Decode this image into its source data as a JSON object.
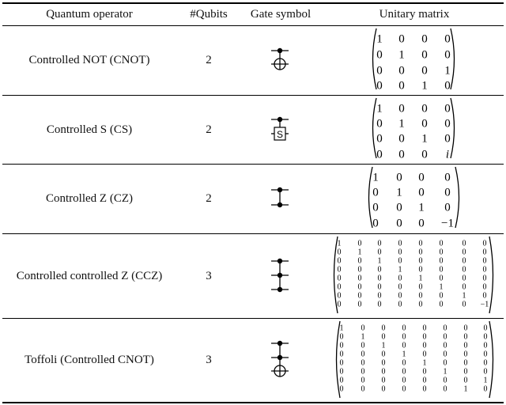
{
  "headers": {
    "operator": "Quantum operator",
    "qubits": "#Qubits",
    "symbol": "Gate symbol",
    "matrix": "Unitary matrix"
  },
  "rows": [
    {
      "operator": "Controlled NOT (CNOT)",
      "qubits": "2",
      "gate": "cnot-gate-icon",
      "matrix": [
        [
          "1",
          "0",
          "0",
          "0"
        ],
        [
          "0",
          "1",
          "0",
          "0"
        ],
        [
          "0",
          "0",
          "0",
          "1"
        ],
        [
          "0",
          "0",
          "1",
          "0"
        ]
      ]
    },
    {
      "operator": "Controlled S (CS)",
      "qubits": "2",
      "gate": "controlled-s-gate-icon",
      "gate_label": "S",
      "matrix": [
        [
          "1",
          "0",
          "0",
          "0"
        ],
        [
          "0",
          "1",
          "0",
          "0"
        ],
        [
          "0",
          "0",
          "1",
          "0"
        ],
        [
          "0",
          "0",
          "0",
          "i"
        ]
      ]
    },
    {
      "operator": "Controlled Z (CZ)",
      "qubits": "2",
      "gate": "cz-gate-icon",
      "matrix": [
        [
          "1",
          "0",
          "0",
          "0"
        ],
        [
          "0",
          "1",
          "0",
          "0"
        ],
        [
          "0",
          "0",
          "1",
          "0"
        ],
        [
          "0",
          "0",
          "0",
          "−1"
        ]
      ]
    },
    {
      "operator": "Controlled controlled Z (CCZ)",
      "qubits": "3",
      "gate": "ccz-gate-icon",
      "matrix": [
        [
          "1",
          "0",
          "0",
          "0",
          "0",
          "0",
          "0",
          "0"
        ],
        [
          "0",
          "1",
          "0",
          "0",
          "0",
          "0",
          "0",
          "0"
        ],
        [
          "0",
          "0",
          "1",
          "0",
          "0",
          "0",
          "0",
          "0"
        ],
        [
          "0",
          "0",
          "0",
          "1",
          "0",
          "0",
          "0",
          "0"
        ],
        [
          "0",
          "0",
          "0",
          "0",
          "1",
          "0",
          "0",
          "0"
        ],
        [
          "0",
          "0",
          "0",
          "0",
          "0",
          "1",
          "0",
          "0"
        ],
        [
          "0",
          "0",
          "0",
          "0",
          "0",
          "0",
          "1",
          "0"
        ],
        [
          "0",
          "0",
          "0",
          "0",
          "0",
          "0",
          "0",
          "−1"
        ]
      ]
    },
    {
      "operator": "Toffoli (Controlled CNOT)",
      "qubits": "3",
      "gate": "toffoli-gate-icon",
      "matrix": [
        [
          "1",
          "0",
          "0",
          "0",
          "0",
          "0",
          "0",
          "0"
        ],
        [
          "0",
          "1",
          "0",
          "0",
          "0",
          "0",
          "0",
          "0"
        ],
        [
          "0",
          "0",
          "1",
          "0",
          "0",
          "0",
          "0",
          "0"
        ],
        [
          "0",
          "0",
          "0",
          "1",
          "0",
          "0",
          "0",
          "0"
        ],
        [
          "0",
          "0",
          "0",
          "0",
          "1",
          "0",
          "0",
          "0"
        ],
        [
          "0",
          "0",
          "0",
          "0",
          "0",
          "1",
          "0",
          "0"
        ],
        [
          "0",
          "0",
          "0",
          "0",
          "0",
          "0",
          "0",
          "1"
        ],
        [
          "0",
          "0",
          "0",
          "0",
          "0",
          "0",
          "1",
          "0"
        ]
      ]
    }
  ]
}
